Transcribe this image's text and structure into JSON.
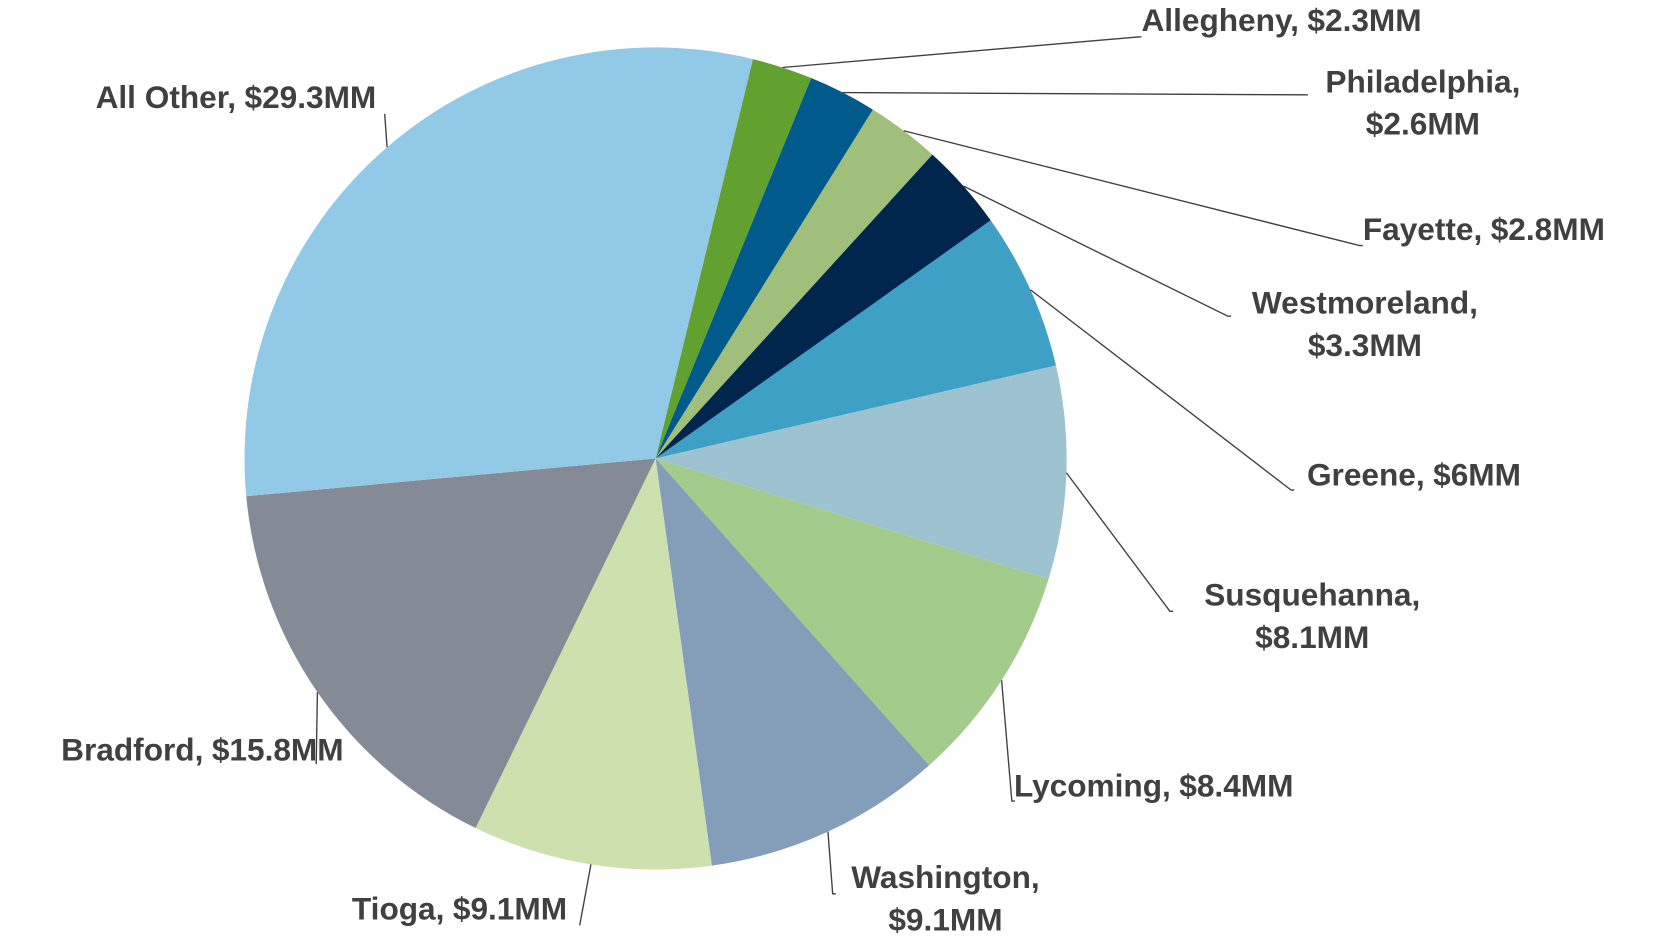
{
  "chart_data": {
    "type": "pie",
    "categories": [
      "Allegheny,",
      "Philadelphia,",
      "Fayette,",
      "Westmoreland,",
      "Greene,",
      "Susquehanna,",
      "Lycoming,",
      "Washington,",
      "Tioga,",
      "Bradford,",
      "All Other,"
    ],
    "values": [
      2.3,
      2.6,
      2.8,
      3.3,
      6,
      8.1,
      8.4,
      9.1,
      9.1,
      15.8,
      29.3
    ],
    "value_labels": [
      "$2.3MM",
      "$2.6MM",
      "$2.8MM",
      "$3.3MM",
      "$6MM",
      "$8.1MM",
      "$8.4MM",
      "$9.1MM",
      "$9.1MM",
      "$15.8MM",
      "$29.3MM"
    ],
    "colors": [
      "#62a030",
      "#005a8c",
      "#9fbf7a",
      "#00264d",
      "#3fa0c6",
      "#9dc3d1",
      "#a3cb8b",
      "#849eba",
      "#cce1ae",
      "#848a96",
      "#92c9e6"
    ]
  }
}
